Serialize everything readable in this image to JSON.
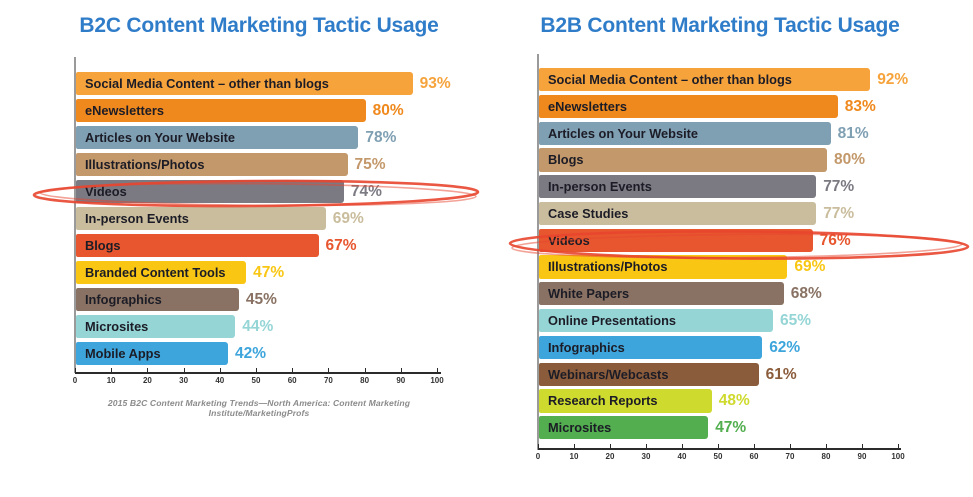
{
  "page": {
    "background": "#ffffff"
  },
  "annotations": {
    "color": "#E8462F",
    "items": [
      {
        "shape": "hand-drawn-ellipse",
        "around": "Videos row (B2C chart, 74%)"
      },
      {
        "shape": "hand-drawn-ellipse",
        "around": "Videos row (B2B chart, 76%)"
      }
    ]
  },
  "chart_data": [
    {
      "type": "bar",
      "orientation": "horizontal",
      "title": "B2C Content Marketing Tactic Usage",
      "title_color": "#2F7CC9",
      "categories": [
        "Social Media Content – other than blogs",
        "eNewsletters",
        "Articles on Your Website",
        "Illustrations/Photos",
        "Videos",
        "In-person Events",
        "Blogs",
        "Branded Content Tools",
        "Infographics",
        "Microsites",
        "Mobile Apps"
      ],
      "values": [
        93,
        80,
        78,
        75,
        74,
        69,
        67,
        47,
        45,
        44,
        42
      ],
      "bar_colors": [
        "#F6A33C",
        "#F0891D",
        "#7F9FB3",
        "#C3986A",
        "#7B7982",
        "#CABD9D",
        "#E7562E",
        "#F9C713",
        "#897263",
        "#95D5D6",
        "#3DA5DC"
      ],
      "value_suffix": "%",
      "xlabel": "",
      "ylabel": "",
      "xlim": [
        0,
        100
      ],
      "x_ticks": [
        0,
        10,
        20,
        30,
        40,
        50,
        60,
        70,
        80,
        90,
        100
      ],
      "grid": false,
      "legend": false,
      "footnote": "2015 B2C Content Marketing Trends—North America: Content Marketing Institute/MarketingProfs"
    },
    {
      "type": "bar",
      "orientation": "horizontal",
      "title": "B2B Content Marketing Tactic Usage",
      "title_color": "#2F7CC9",
      "categories": [
        "Social Media Content – other than blogs",
        "eNewsletters",
        "Articles on Your Website",
        "Blogs",
        "In-person Events",
        "Case Studies",
        "Videos",
        "Illustrations/Photos",
        "White Papers",
        "Online Presentations",
        "Infographics",
        "Webinars/Webcasts",
        "Research Reports",
        "Microsites"
      ],
      "values": [
        92,
        83,
        81,
        80,
        77,
        77,
        76,
        69,
        68,
        65,
        62,
        61,
        48,
        47
      ],
      "bar_colors": [
        "#F6A33C",
        "#F0891D",
        "#7F9FB3",
        "#C3986A",
        "#7B7982",
        "#CABD9D",
        "#E7562E",
        "#F9C713",
        "#897263",
        "#95D5D6",
        "#3DA5DC",
        "#8A5C3B",
        "#CFDA2E",
        "#52AE4F"
      ],
      "value_suffix": "%",
      "xlabel": "",
      "ylabel": "",
      "xlim": [
        0,
        100
      ],
      "x_ticks": [
        0,
        10,
        20,
        30,
        40,
        50,
        60,
        70,
        80,
        90,
        100
      ],
      "grid": false,
      "legend": false,
      "footnote": ""
    }
  ]
}
